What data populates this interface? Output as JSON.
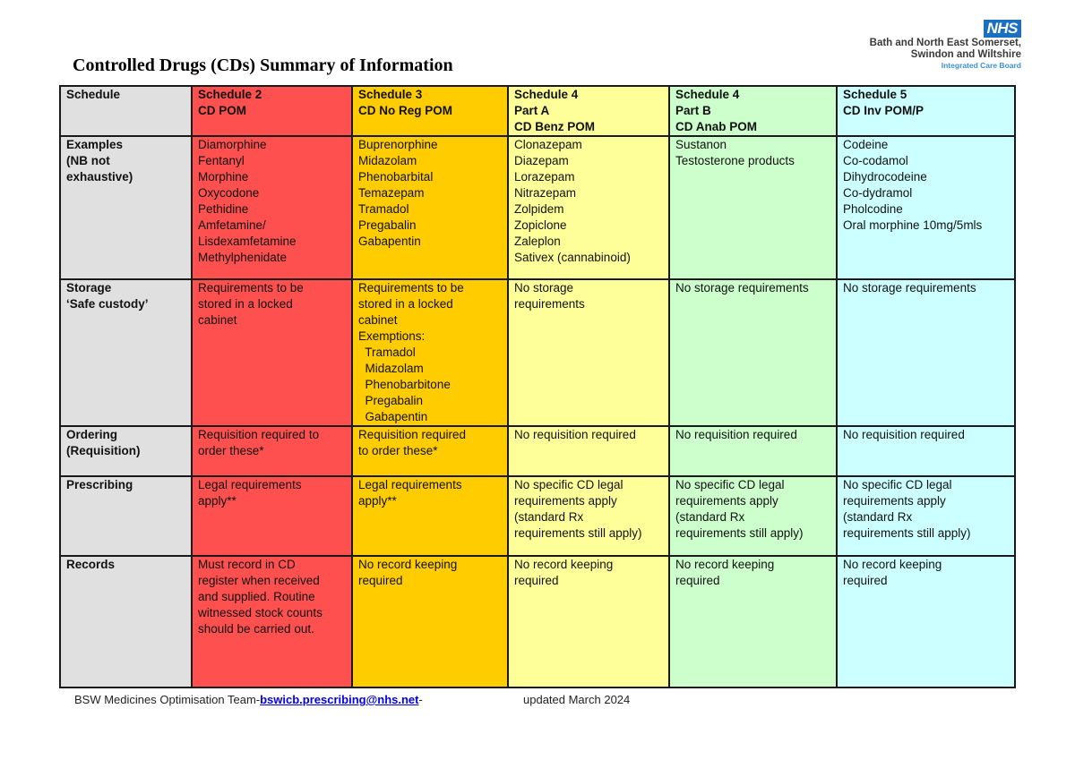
{
  "logo": {
    "badge": "NHS",
    "line1": "Bath and North East Somerset,",
    "line2": "Swindon and Wiltshire",
    "line3": "Integrated Care Board"
  },
  "title": "Controlled Drugs (CDs) Summary of Information",
  "colors": {
    "label_col": "#e0e0e0",
    "schedule2": "#ff5050",
    "schedule3": "#ffcc00",
    "schedule4a": "#ffff99",
    "schedule4b": "#ccffcc",
    "schedule5": "#ccffff"
  },
  "table": {
    "header": {
      "label": [
        "Schedule"
      ],
      "cols": [
        [
          "Schedule 2",
          "CD POM"
        ],
        [
          "Schedule 3",
          "CD No Reg POM"
        ],
        [
          "Schedule 4",
          "Part A",
          "CD Benz POM"
        ],
        [
          "Schedule 4",
          "Part B",
          "CD Anab POM"
        ],
        [
          "Schedule 5",
          "CD Inv POM/P"
        ]
      ]
    },
    "rows": [
      {
        "label": [
          "Examples",
          "(NB not",
          "exhaustive)"
        ],
        "cells": [
          [
            "Diamorphine",
            "Fentanyl",
            "Morphine",
            "Oxycodone",
            "Pethidine",
            "Amfetamine/",
            "Lisdexamfetamine",
            "Methylphenidate"
          ],
          [
            "Buprenorphine",
            "Midazolam",
            "Phenobarbital",
            "Temazepam",
            "Tramadol",
            "Pregabalin",
            "Gabapentin"
          ],
          [
            "Clonazepam",
            "Diazepam",
            "Lorazepam",
            "Nitrazepam",
            "Zolpidem",
            "Zopiclone",
            "Zaleplon",
            "Sativex (cannabinoid)"
          ],
          [
            "Sustanon",
            "Testosterone products"
          ],
          [
            "Codeine",
            "Co-codamol",
            "Dihydrocodeine",
            "Co-dydramol",
            "Pholcodine",
            "Oral morphine 10mg/5mls"
          ]
        ]
      },
      {
        "label": [
          "Storage",
          "‘Safe custody’"
        ],
        "cells": [
          [
            "Requirements to be",
            "stored in a locked",
            "cabinet"
          ],
          [
            "Requirements to be",
            "stored in a locked",
            "cabinet",
            "Exemptions:",
            "  Tramadol",
            "  Midazolam",
            "  Phenobarbitone",
            "  Pregabalin",
            "  Gabapentin"
          ],
          [
            "No storage",
            "requirements"
          ],
          [
            "No storage requirements"
          ],
          [
            "No storage requirements"
          ]
        ]
      },
      {
        "label": [
          "Ordering",
          "(Requisition)"
        ],
        "cells": [
          [
            "Requisition required to",
            "order these*"
          ],
          [
            "Requisition required",
            "to order these*"
          ],
          [
            "No requisition required"
          ],
          [
            "No requisition required"
          ],
          [
            "No requisition required"
          ]
        ]
      },
      {
        "label": [
          "Prescribing"
        ],
        "cells": [
          [
            "Legal requirements",
            "apply**"
          ],
          [
            "Legal requirements",
            "apply**"
          ],
          [
            "No specific CD legal",
            "requirements apply",
            "(standard Rx",
            "requirements still apply)"
          ],
          [
            "No specific CD legal",
            "requirements apply",
            "(standard Rx",
            "requirements still apply)"
          ],
          [
            "No specific CD legal",
            "requirements apply",
            "(standard Rx",
            "requirements still apply)"
          ]
        ]
      },
      {
        "label": [
          "Records"
        ],
        "cells": [
          [
            "Must record in CD",
            "register when received",
            "and supplied. Routine",
            "witnessed stock counts",
            "should be carried out."
          ],
          [
            "No record keeping",
            "required"
          ],
          [
            "No record keeping",
            "required"
          ],
          [
            "No record keeping",
            "required"
          ],
          [
            "No record keeping",
            "required"
          ]
        ]
      }
    ]
  },
  "footer": {
    "team": "BSW Medicines Optimisation Team-",
    "email": "bswicb.prescribing@nhs.net",
    "dash": "-",
    "updated": "updated March 2024"
  }
}
